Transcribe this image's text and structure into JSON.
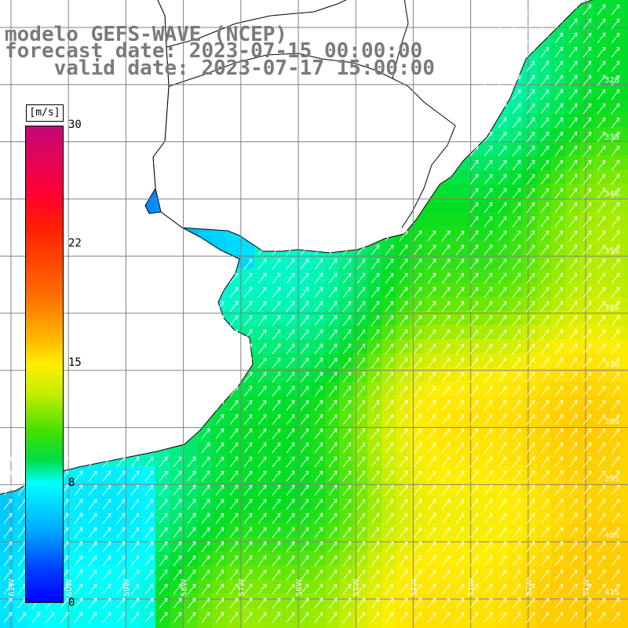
{
  "title": {
    "line1": "modelo GEFS-WAVE (NCEP)",
    "line2": "forecast date: 2023-07-15 00:00:00",
    "line3": "    valid date: 2023-07-17 15:00:00"
  },
  "colorbar": {
    "unit": "[m/s]",
    "ticks": [
      "30",
      "22",
      "15",
      "8",
      "0"
    ],
    "colors": [
      "#0000ff",
      "#0080ff",
      "#00ffff",
      "#00dd44",
      "#44e000",
      "#c8ee00",
      "#ffee00",
      "#ff7000",
      "#ff0033",
      "#c4087a"
    ]
  },
  "map": {
    "lat_labels": [
      "32S",
      "33S",
      "34S",
      "35S",
      "36S",
      "37S",
      "38S",
      "39S",
      "40S",
      "41S"
    ],
    "lon_labels": [
      "61W",
      "60W",
      "59W",
      "58W",
      "57W",
      "56W",
      "55W",
      "54W",
      "53W",
      "52W",
      "51W"
    ],
    "land_color": "#ffffff",
    "coast_color": "#000000",
    "grid_color": "#808080",
    "arrow_color": "#ffffff"
  }
}
